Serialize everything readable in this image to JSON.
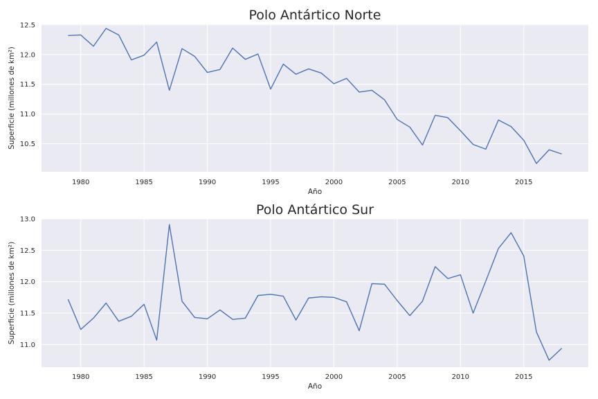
{
  "chart_data": [
    {
      "type": "line",
      "title": "Polo Antártico Norte",
      "xlabel": "Año",
      "ylabel": "Superficie (millones de km²)",
      "xlim": [
        1976.9,
        2020.1
      ],
      "ylim": [
        10.03,
        12.51
      ],
      "xticks": [
        1980,
        1985,
        1990,
        1995,
        2000,
        2005,
        2010,
        2015
      ],
      "yticks": [
        10.5,
        11.0,
        11.5,
        12.0,
        12.5
      ],
      "ytick_labels": [
        "10.5",
        "11.0",
        "11.5",
        "12.0",
        "12.5"
      ],
      "grid": true,
      "color": "#4c72b0",
      "x": [
        1979,
        1980,
        1981,
        1982,
        1983,
        1984,
        1985,
        1986,
        1987,
        1988,
        1989,
        1990,
        1991,
        1992,
        1993,
        1994,
        1995,
        1996,
        1997,
        1998,
        1999,
        2000,
        2001,
        2002,
        2003,
        2004,
        2005,
        2006,
        2007,
        2008,
        2009,
        2010,
        2011,
        2012,
        2013,
        2014,
        2015,
        2016,
        2017,
        2018
      ],
      "y": [
        12.32,
        12.33,
        12.14,
        12.44,
        12.33,
        11.91,
        11.99,
        12.21,
        11.4,
        12.1,
        11.97,
        11.7,
        11.75,
        12.11,
        11.92,
        12.01,
        11.42,
        11.84,
        11.67,
        11.76,
        11.69,
        11.51,
        11.6,
        11.37,
        11.4,
        11.24,
        10.91,
        10.78,
        10.48,
        10.98,
        10.94,
        10.72,
        10.49,
        10.41,
        10.9,
        10.79,
        10.56,
        10.17,
        10.4,
        10.33
      ]
    },
    {
      "type": "line",
      "title": "Polo Antártico Sur",
      "xlabel": "Año",
      "ylabel": "Superficie (millones de km²)",
      "xlim": [
        1976.9,
        2020.1
      ],
      "ylim": [
        10.64,
        13.0
      ],
      "xticks": [
        1980,
        1985,
        1990,
        1995,
        2000,
        2005,
        2010,
        2015
      ],
      "yticks": [
        11.0,
        11.5,
        12.0,
        12.5,
        13.0
      ],
      "ytick_labels": [
        "11.0",
        "11.5",
        "12.0",
        "12.5",
        "13.0"
      ],
      "grid": true,
      "color": "#4c72b0",
      "x": [
        1979,
        1980,
        1981,
        1982,
        1983,
        1984,
        1985,
        1986,
        1987,
        1988,
        1989,
        1990,
        1991,
        1992,
        1993,
        1994,
        1995,
        1996,
        1997,
        1998,
        1999,
        2000,
        2001,
        2002,
        2003,
        2004,
        2005,
        2006,
        2007,
        2008,
        2009,
        2010,
        2011,
        2012,
        2013,
        2014,
        2015,
        2016,
        2017,
        2018
      ],
      "y": [
        11.72,
        11.24,
        11.42,
        11.66,
        11.37,
        11.45,
        11.64,
        11.07,
        12.91,
        11.69,
        11.43,
        11.41,
        11.55,
        11.4,
        11.42,
        11.78,
        11.8,
        11.77,
        11.39,
        11.74,
        11.76,
        11.75,
        11.68,
        11.22,
        11.97,
        11.96,
        11.7,
        11.46,
        11.69,
        12.24,
        12.05,
        12.11,
        11.5,
        12.01,
        12.53,
        12.78,
        12.41,
        11.2,
        10.75,
        10.94
      ]
    }
  ]
}
